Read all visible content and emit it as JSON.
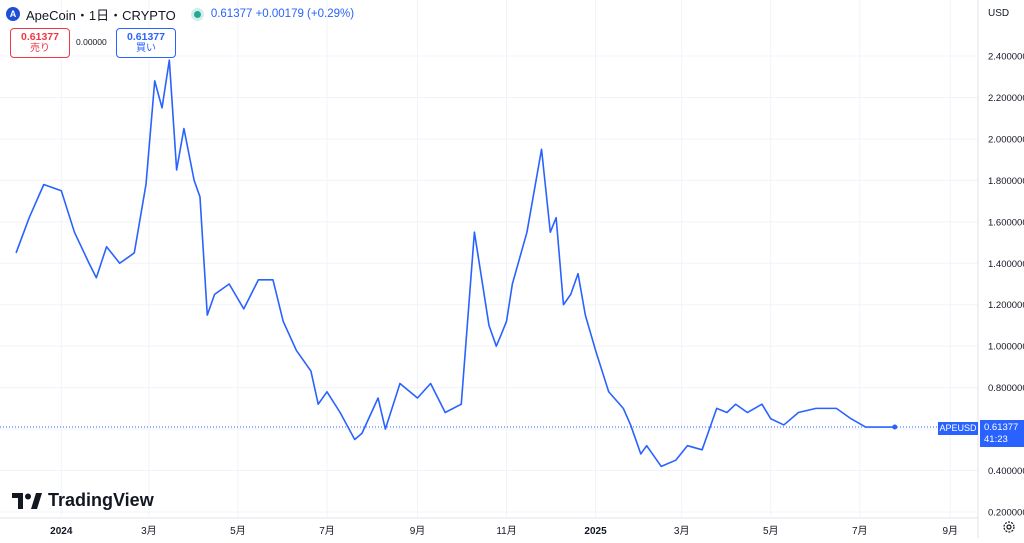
{
  "header": {
    "logo_glyph": "A",
    "title": "ApeCoin・1日・CRYPTO",
    "price_change": "0.61377 +0.00179 (+0.29%)"
  },
  "trade": {
    "sell_price": "0.61377",
    "sell_label": "売り",
    "spread": "0.00000",
    "buy_price": "0.61377",
    "buy_label": "買い"
  },
  "axis": {
    "currency": "USD",
    "ticker": "APEUSD",
    "last_price": "0.61377",
    "countdown": "41:23"
  },
  "branding": {
    "name": "TradingView"
  },
  "colors": {
    "line": "#2962ff",
    "grid": "#f0f3fa",
    "accent": "#2962ff",
    "sell": "#f23645"
  },
  "chart_data": {
    "type": "line",
    "series": [
      {
        "x": [
          "2023-12-01",
          "2023-12-10",
          "2023-12-20",
          "2024-01-01",
          "2024-01-10",
          "2024-01-20",
          "2024-01-25",
          "2024-02-01",
          "2024-02-10",
          "2024-02-20",
          "2024-02-28",
          "2024-03-05",
          "2024-03-10",
          "2024-03-15",
          "2024-03-20",
          "2024-03-25",
          "2024-04-01",
          "2024-04-05",
          "2024-04-10",
          "2024-04-15",
          "2024-04-25",
          "2024-05-05",
          "2024-05-15",
          "2024-05-25",
          "2024-06-01",
          "2024-06-10",
          "2024-06-20",
          "2024-06-25",
          "2024-07-01",
          "2024-07-10",
          "2024-07-20",
          "2024-07-25",
          "2024-08-05",
          "2024-08-10",
          "2024-08-20",
          "2024-09-01",
          "2024-09-10",
          "2024-09-20",
          "2024-10-01",
          "2024-10-10",
          "2024-10-20",
          "2024-10-25",
          "2024-10-28",
          "2024-11-01",
          "2024-11-05",
          "2024-11-15",
          "2024-11-25",
          "2024-12-01",
          "2024-12-05",
          "2024-12-10",
          "2024-12-15",
          "2024-12-20",
          "2024-12-25",
          "2025-01-01",
          "2025-01-10",
          "2025-01-20",
          "2025-01-25",
          "2025-02-01",
          "2025-02-05",
          "2025-02-15",
          "2025-02-25",
          "2025-03-05",
          "2025-03-15",
          "2025-03-25",
          "2025-04-01",
          "2025-04-07",
          "2025-04-15",
          "2025-04-25",
          "2025-05-01",
          "2025-05-10",
          "2025-05-20",
          "2025-06-01",
          "2025-06-15",
          "2025-06-25",
          "2025-07-05",
          "2025-07-15",
          "2025-07-20",
          "2025-07-25"
        ],
        "y": [
          1.45,
          1.62,
          1.78,
          1.75,
          1.55,
          1.4,
          1.33,
          1.48,
          1.4,
          1.45,
          1.78,
          2.28,
          2.15,
          2.38,
          1.85,
          2.05,
          1.8,
          1.72,
          1.15,
          1.25,
          1.3,
          1.18,
          1.32,
          1.32,
          1.12,
          0.98,
          0.88,
          0.72,
          0.78,
          0.68,
          0.55,
          0.58,
          0.75,
          0.6,
          0.82,
          0.75,
          0.82,
          0.68,
          0.72,
          1.55,
          1.1,
          1.0,
          1.05,
          1.12,
          1.3,
          1.55,
          1.95,
          1.55,
          1.62,
          1.2,
          1.25,
          1.35,
          1.15,
          0.98,
          0.78,
          0.7,
          0.62,
          0.48,
          0.52,
          0.42,
          0.45,
          0.52,
          0.5,
          0.7,
          0.68,
          0.72,
          0.68,
          0.72,
          0.65,
          0.62,
          0.68,
          0.7,
          0.7,
          0.65,
          0.61,
          0.61,
          0.61,
          0.61
        ]
      }
    ],
    "yticks": [
      "0.200000",
      "0.400000",
      "0.600000",
      "0.800000",
      "1.000000",
      "1.200000",
      "1.400000",
      "1.600000",
      "1.800000",
      "2.000000",
      "2.200000",
      "2.400000"
    ],
    "ylim": [
      0.2,
      2.4
    ],
    "xticks": [
      "2024",
      "3月",
      "5月",
      "7月",
      "9月",
      "11月",
      "2025",
      "3月",
      "5月",
      "7月",
      "9月"
    ],
    "xlim": [
      "2023-11-20",
      "2025-09-20"
    ],
    "grid": true
  }
}
